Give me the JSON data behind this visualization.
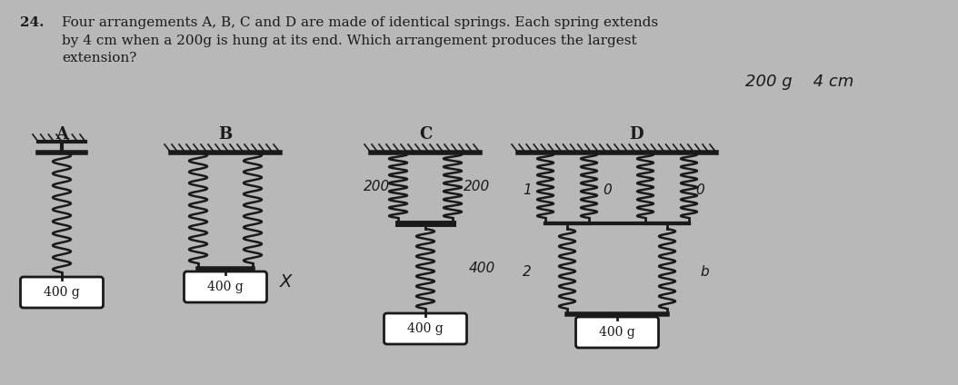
{
  "title_num": "24.",
  "title_text": "Four arrangements A, B, C and D are made of identical springs. Each spring extends\nby 4 cm when a 200g is hung at its end. Which arrangement produces the largest\nextension?",
  "bg_color": "#c8c8c8",
  "text_color": "#1a1a1a",
  "weight_label": "400 g",
  "hw_text": "200 g    4 cm",
  "label_A": "A",
  "label_B": "B",
  "label_C": "C",
  "label_D": "D",
  "ann_C_left": "200",
  "ann_C_right": "200",
  "ann_C_bot": "400",
  "ann_D_1": "1",
  "ann_D_2": "0",
  "ann_D_3": "0",
  "ann_D_bl": "2",
  "ann_D_br": "b",
  "ann_X": "X"
}
